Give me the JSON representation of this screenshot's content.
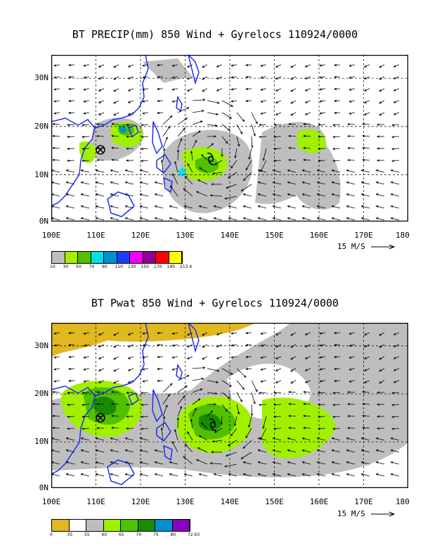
{
  "panels": [
    {
      "title": "BT PRECIP(mm) 850 Wind + Gyrelocs 110924/0000",
      "y_ticks": [
        "30N",
        "20N",
        "10N",
        "0N"
      ],
      "x_ticks": [
        "100E",
        "110E",
        "120E",
        "130E",
        "140E",
        "150E",
        "160E",
        "170E",
        "180"
      ],
      "scale_label": "15 M/S",
      "colorbar_labels": [
        "10",
        "30",
        "50",
        "70",
        "90",
        "110",
        "130",
        "150",
        "170",
        "190",
        "213.4"
      ],
      "colorbar_colors": [
        "#bebebe",
        "#a0f000",
        "#50c000",
        "#00e0e0",
        "#0090d0",
        "#1e3cff",
        "#f000f0",
        "#900090",
        "#ff0000",
        "#ffff00"
      ]
    },
    {
      "title": "BT Pwat 850 Wind + Gyrelocs 110924/0000",
      "y_ticks": [
        "30N",
        "20N",
        "10N",
        "0N"
      ],
      "x_ticks": [
        "100E",
        "110E",
        "120E",
        "130E",
        "140E",
        "150E",
        "160E",
        "170E",
        "180"
      ],
      "scale_label": "15 M/S",
      "colorbar_labels": [
        "0",
        "35",
        "55",
        "60",
        "65",
        "70",
        "75",
        "80",
        "72.63"
      ],
      "colorbar_colors": [
        "#e0b820",
        "#ffffff",
        "#bebebe",
        "#a0f000",
        "#50c000",
        "#1a8a00",
        "#0090d0",
        "#8a00c8"
      ]
    }
  ]
}
